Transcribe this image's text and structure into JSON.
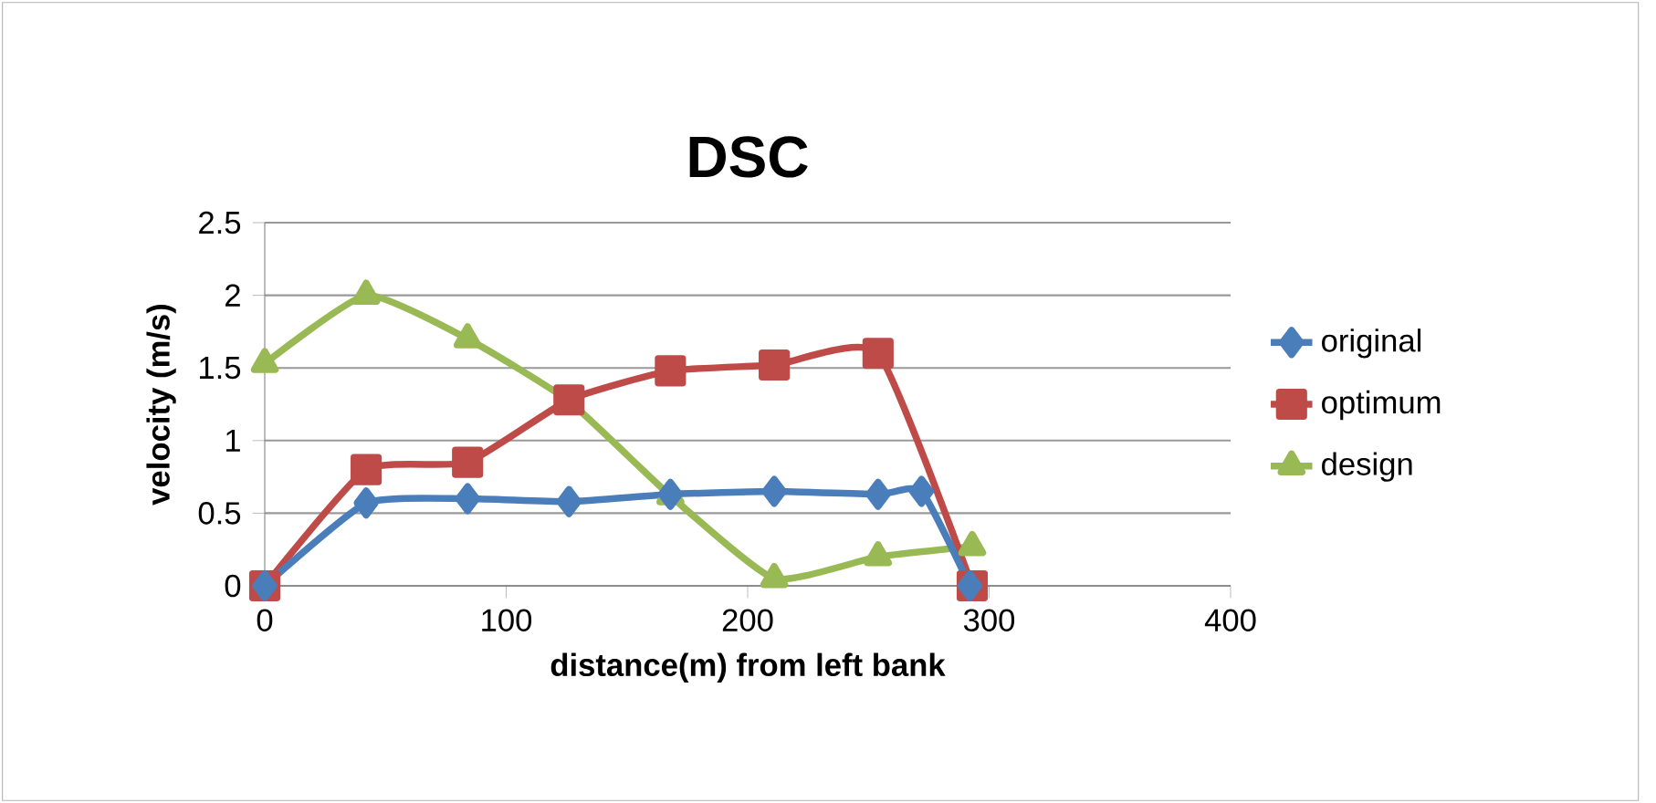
{
  "chart_data": {
    "type": "line",
    "title": "DSC",
    "xlabel": "distance(m) from left bank",
    "ylabel": "velocity (m/s)",
    "xlim": [
      0,
      400
    ],
    "xticks": [
      0,
      100,
      200,
      300,
      400
    ],
    "ylim": [
      0,
      2.5
    ],
    "yticks": [
      0,
      0.5,
      1,
      1.5,
      2,
      2.5
    ],
    "grid": "y",
    "legend": "right",
    "series": [
      {
        "name": "original",
        "color": "#4a7ebb",
        "marker": "diamond",
        "x": [
          0,
          42,
          84,
          126,
          168,
          211,
          254,
          272,
          292
        ],
        "values": [
          0,
          0.57,
          0.6,
          0.58,
          0.63,
          0.65,
          0.63,
          0.65,
          0
        ]
      },
      {
        "name": "optimum",
        "color": "#be4b48",
        "marker": "square",
        "x": [
          0,
          42,
          84,
          126,
          168,
          211,
          254,
          293
        ],
        "values": [
          0,
          0.8,
          0.85,
          1.28,
          1.48,
          1.52,
          1.6,
          0
        ]
      },
      {
        "name": "design",
        "color": "#98b954",
        "marker": "triangle",
        "x": [
          0,
          42,
          84,
          126,
          168,
          211,
          254,
          293
        ],
        "values": [
          1.53,
          2.0,
          1.7,
          1.27,
          0.62,
          0.05,
          0.2,
          0.27
        ]
      }
    ]
  }
}
